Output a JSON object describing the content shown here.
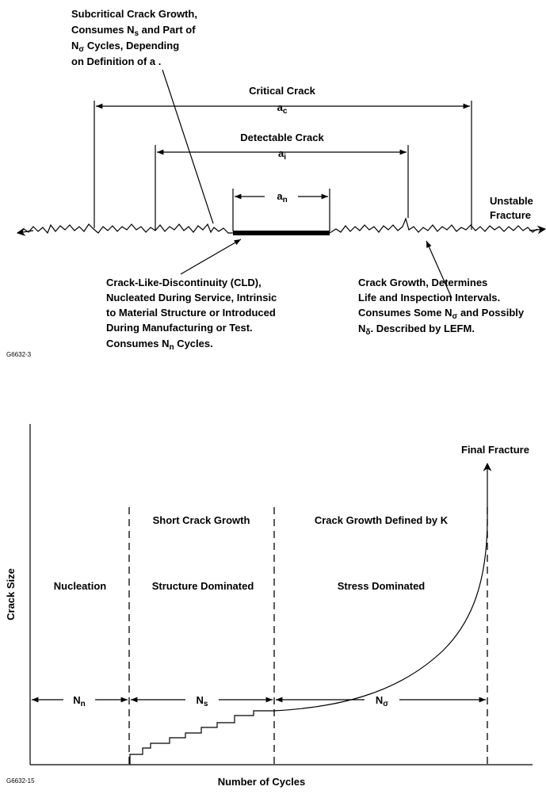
{
  "top_diagram": {
    "subcritical_label": [
      "Subcritical Crack Growth,",
      "Consumes N",
      "s",
      " and Part of",
      "N",
      "σ",
      " Cycles, Depending",
      "on Definition of a ."
    ],
    "critical_crack": "Critical Crack",
    "critical_symbol": "a",
    "critical_sub": "c",
    "detectable_crack": "Detectable Crack",
    "detectable_symbol": "a",
    "detectable_sub": "i",
    "nucleus_symbol": "a",
    "nucleus_sub": "n",
    "unstable_line1": "Unstable",
    "unstable_line2": "Fracture",
    "cld_label": {
      "l1": "Crack-Like-Discontinuity (CLD),",
      "l2": "Nucleated During Service, Intrinsic",
      "l3": "to Material Structure or Introduced",
      "l4": "During Manufacturing or Test.",
      "l5a": "Consumes N",
      "l5sub": "n",
      "l5b": " Cycles."
    },
    "growth_label": {
      "l1": "Crack Growth, Determines",
      "l2": "Life and Inspection Intervals.",
      "l3a": "Consumes Some N",
      "l3sub": "σ",
      "l3b": " and Possibly",
      "l4a": "N",
      "l4sub": "δ",
      "l4b": ".  Described by LEFM."
    },
    "figure_id": "G6632-3"
  },
  "bottom_chart": {
    "final_fracture": "Final Fracture",
    "ylabel": "Crack Size",
    "xlabel": "Number of Cycles",
    "regions": {
      "nucleation": "Nucleation",
      "short_crack_title": "Short Crack Growth",
      "short_crack_sub": "Structure Dominated",
      "k_title": "Crack Growth Defined by K",
      "k_sub": "Stress Dominated"
    },
    "phases": [
      {
        "symbol": "N",
        "sub": "n"
      },
      {
        "symbol": "N",
        "sub": "s"
      },
      {
        "symbol": "N",
        "sub": "σ"
      }
    ],
    "figure_id": "G6632-15"
  }
}
